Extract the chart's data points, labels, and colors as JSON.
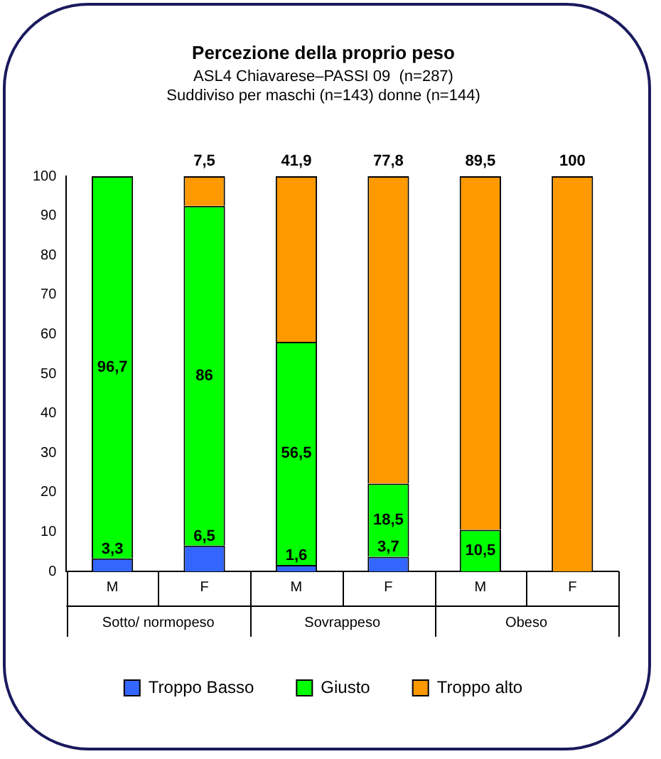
{
  "chart_data": {
    "type": "bar",
    "stacked": true,
    "title": "Percezione della proprio peso",
    "subtitle": "ASL4 Chiavarese–PASSI 09  (n=287)\nSuddiviso per maschi (n=143) donne (n=144)",
    "categories": [
      "M",
      "F",
      "M",
      "F",
      "M",
      "F"
    ],
    "annotations": [
      "Sotto/ normopeso",
      "Sovrappeso",
      "Obeso"
    ],
    "series": [
      {
        "name": "Troppo Basso",
        "color": "#3366ff",
        "values": [
          3.3,
          6.5,
          1.6,
          3.7,
          0,
          0
        ],
        "value_labels": [
          "3,3",
          "6,5",
          "1,6",
          "3,7",
          null,
          null
        ]
      },
      {
        "name": "Giusto",
        "color": "#00ff00",
        "values": [
          96.7,
          86,
          56.5,
          18.5,
          10.5,
          0
        ],
        "value_labels": [
          "96,7",
          "86",
          "56,5",
          "18,5",
          "10,5",
          null
        ]
      },
      {
        "name": "Troppo alto",
        "color": "#ff9900",
        "values": [
          0,
          7.5,
          41.9,
          77.8,
          89.5,
          100
        ],
        "value_labels": [
          null,
          "7,5",
          "41,9",
          "77,8",
          "89,5",
          "100"
        ]
      }
    ],
    "ylim": [
      0,
      100
    ],
    "yticks": [
      0,
      10,
      20,
      30,
      40,
      50,
      60,
      70,
      80,
      90,
      100
    ],
    "grid": false,
    "legend": "bottom"
  }
}
